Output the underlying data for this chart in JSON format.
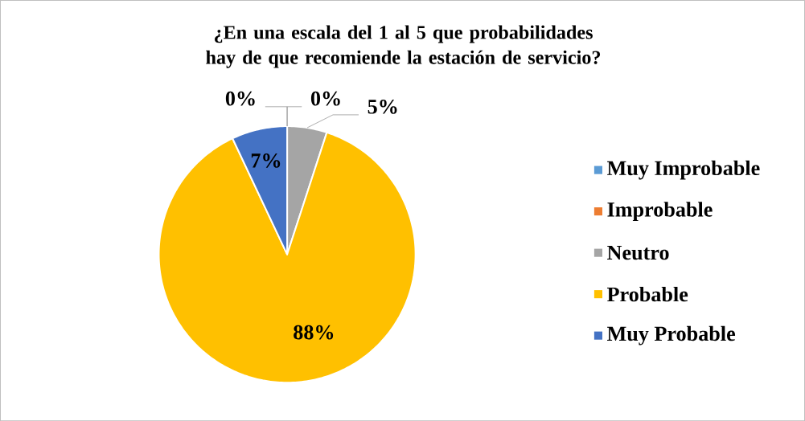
{
  "chart_data": {
    "type": "pie",
    "title": "¿En una escala del 1 al 5 que probabilidades hay de que recomiende la estación de servicio?",
    "categories": [
      "Muy Improbable",
      "Improbable",
      "Neutro",
      "Probable",
      "Muy Probable"
    ],
    "values": [
      0,
      0,
      5,
      88,
      7
    ],
    "colors": [
      "#5b9bd5",
      "#ed7d31",
      "#a5a5a5",
      "#ffc000",
      "#4472c4"
    ],
    "value_labels": [
      "0%",
      "0%",
      "5%",
      "88%",
      "7%"
    ],
    "legend": "right"
  }
}
